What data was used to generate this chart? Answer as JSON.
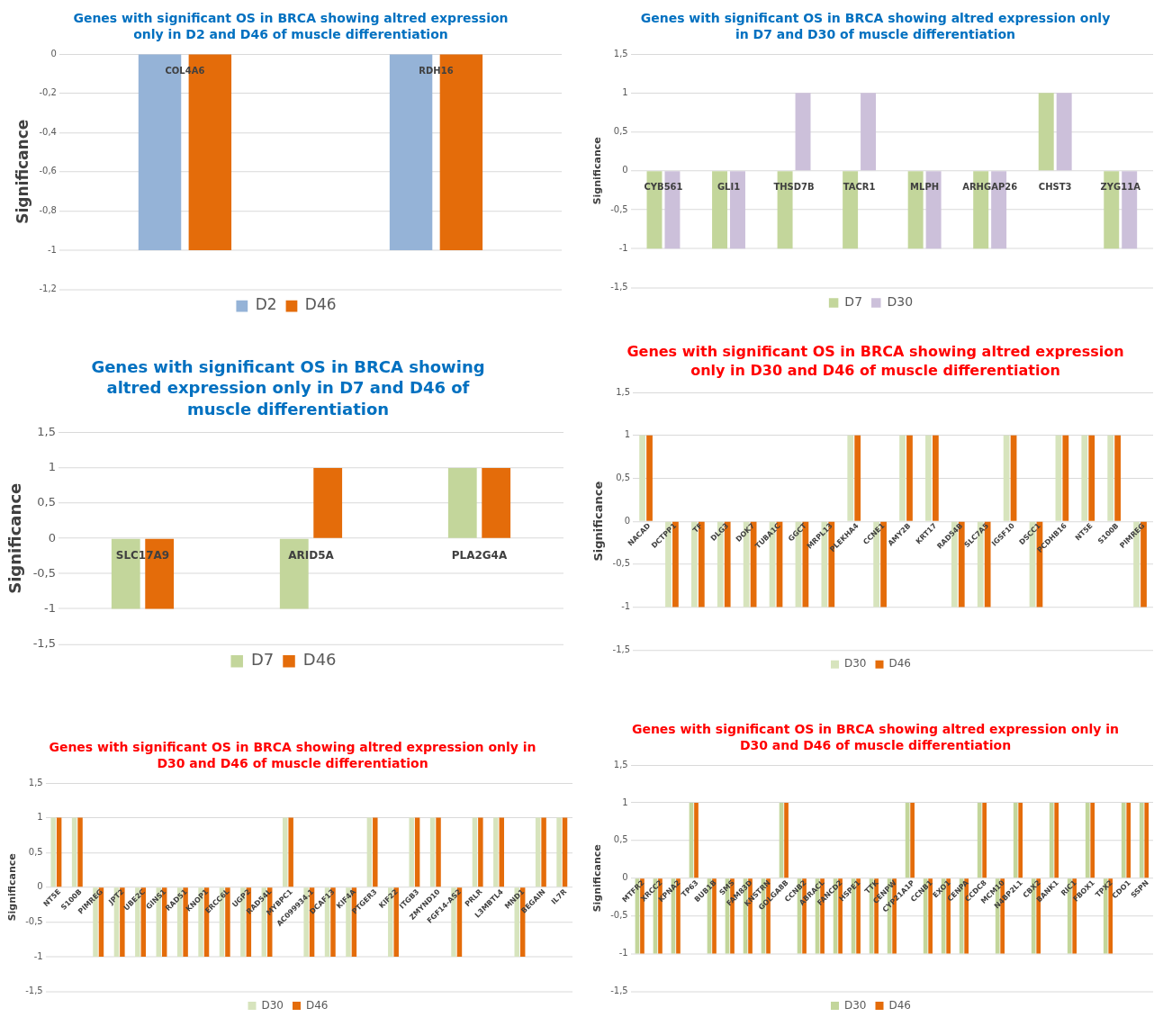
{
  "chart_data": [
    {
      "type": "bar",
      "title": "Genes with significant OS in BRCA showing altred expression only in D2 and D46  of muscle differentiation",
      "ylabel": "Significance",
      "categories": [
        "COL4A6",
        "RDH16"
      ],
      "series": [
        {
          "name": "D2",
          "color": "#95b3d7",
          "values": [
            -1,
            -1
          ]
        },
        {
          "name": "D46",
          "color": "#e46c0a",
          "values": [
            -1,
            -1
          ]
        }
      ],
      "ylim": [
        -1.2,
        0
      ],
      "yticks": [
        0,
        {
          "value": -0.2,
          "label": "-0,2"
        },
        {
          "value": -0.4,
          "label": "-0,4"
        },
        {
          "value": -0.6,
          "label": "-0,6"
        },
        {
          "value": -0.8,
          "label": "-0,8"
        },
        -1,
        {
          "value": -1.2,
          "label": "-1,2"
        }
      ],
      "grid": "y",
      "legend": "bottom"
    },
    {
      "type": "bar",
      "title": "Genes with significant OS in BRCA showing altred expression only in D7 and D30  of muscle differentiation",
      "ylabel": "Significance",
      "categories": [
        "CYB561",
        "GLI1",
        "THSD7B",
        "TACR1",
        "MLPH",
        "ARHGAP26",
        "CHST3",
        "ZYG11A"
      ],
      "series": [
        {
          "name": "D7",
          "color": "#c3d69b",
          "values": [
            -1,
            -1,
            -1,
            -1,
            -1,
            -1,
            1,
            -1
          ]
        },
        {
          "name": "D30",
          "color": "#ccc0da",
          "values": [
            -1,
            -1,
            1,
            1,
            -1,
            -1,
            1,
            -1
          ]
        }
      ],
      "ylim": [
        -1.5,
        1.5
      ],
      "yticks": [
        {
          "value": 1.5,
          "label": "1,5"
        },
        1,
        {
          "value": 0.5,
          "label": "0,5"
        },
        0,
        {
          "value": -0.5,
          "label": "-0,5"
        },
        -1,
        {
          "value": -1.5,
          "label": "-1,5"
        }
      ],
      "grid": "y",
      "legend": "bottom"
    },
    {
      "type": "bar",
      "title": "Genes with significant OS in BRCA showing altred expression only in D7 and D46  of muscle differentiation",
      "ylabel": "Significance",
      "categories": [
        "SLC17A9",
        "ARID5A",
        "PLA2G4A"
      ],
      "series": [
        {
          "name": "D7",
          "color": "#c3d69b",
          "values": [
            -1,
            -1,
            1
          ]
        },
        {
          "name": "D46",
          "color": "#e46c0a",
          "values": [
            -1,
            1,
            1
          ]
        }
      ],
      "ylim": [
        -1.5,
        1.5
      ],
      "yticks": [
        {
          "value": 1.5,
          "label": "1,5"
        },
        1,
        {
          "value": 0.5,
          "label": "0,5"
        },
        0,
        {
          "value": -0.5,
          "label": "-0,5"
        },
        -1,
        {
          "value": -1.5,
          "label": "-1,5"
        }
      ],
      "grid": "y",
      "legend": "bottom"
    },
    {
      "type": "bar",
      "title": "Genes with significant OS in BRCA showing altred expression only in D30 and D46  of muscle differentiation",
      "ylabel": "Significance",
      "categories": [
        "NACAD",
        "DCTPP1",
        "TF",
        "DLG3",
        "DOK7",
        "TUBA1C",
        "GGCT",
        "MRPL13",
        "PLEKHA4",
        "CCNE1",
        "AMY2B",
        "KRT17",
        "RAD54B",
        "SLC7A5",
        "IGSF10",
        "DSCC1",
        "PCDHB16",
        "NT5E",
        "S100B",
        "PIMREG"
      ],
      "series": [
        {
          "name": "D30",
          "color": "#d7e4bd",
          "values": [
            1,
            -1,
            -1,
            -1,
            -1,
            -1,
            -1,
            -1,
            1,
            -1,
            1,
            1,
            -1,
            -1,
            1,
            -1,
            1,
            1,
            1,
            -1
          ]
        },
        {
          "name": "D46",
          "color": "#e46c0a",
          "values": [
            1,
            -1,
            -1,
            -1,
            -1,
            -1,
            -1,
            -1,
            1,
            -1,
            1,
            1,
            -1,
            -1,
            1,
            -1,
            1,
            1,
            1,
            -1
          ]
        }
      ],
      "ylim": [
        -1.5,
        1.5
      ],
      "yticks": [
        {
          "value": 1.5,
          "label": "1,5"
        },
        1,
        {
          "value": 0.5,
          "label": "0,5"
        },
        0,
        {
          "value": -0.5,
          "label": "-0,5"
        },
        -1,
        {
          "value": -1.5,
          "label": "-1,5"
        }
      ],
      "grid": "y",
      "legend": "bottom"
    },
    {
      "type": "bar",
      "title": "Genes with significant OS in BRCA showing altred expression only in D30 and D46  of muscle differentiation",
      "ylabel": "Significance",
      "categories": [
        "NT5E",
        "S100B",
        "PIMREG",
        "JPT2",
        "UBE2C",
        "GINS1",
        "RAD51",
        "KNOP1",
        "ERCC6L",
        "UGP2",
        "RAD54L",
        "MYBPC1",
        "AC099934.1",
        "DCAF13",
        "KIF4A",
        "PTGER3",
        "KIF22",
        "ITGB3",
        "ZMYND10",
        "FGF14-AS2",
        "PRLR",
        "L3MBTL4",
        "MND1",
        "BEGAIN",
        "IL7R"
      ],
      "series": [
        {
          "name": "D30",
          "color": "#d7e4bd",
          "values": [
            1,
            1,
            -1,
            -1,
            -1,
            -1,
            -1,
            -1,
            -1,
            -1,
            -1,
            1,
            -1,
            -1,
            -1,
            1,
            -1,
            1,
            1,
            -1,
            1,
            1,
            -1,
            1,
            1
          ]
        },
        {
          "name": "D46",
          "color": "#e46c0a",
          "values": [
            1,
            1,
            -1,
            -1,
            -1,
            -1,
            -1,
            -1,
            -1,
            -1,
            -1,
            1,
            -1,
            -1,
            -1,
            1,
            -1,
            1,
            1,
            -1,
            1,
            1,
            -1,
            1,
            1
          ]
        }
      ],
      "ylim": [
        -1.5,
        1.5
      ],
      "yticks": [
        {
          "value": 1.5,
          "label": "1,5"
        },
        1,
        {
          "value": 0.5,
          "label": "0,5"
        },
        0,
        {
          "value": -0.5,
          "label": "-0,5"
        },
        -1,
        {
          "value": -1.5,
          "label": "-1,5"
        }
      ],
      "grid": "y",
      "legend": "bottom"
    },
    {
      "type": "bar",
      "title": "Genes with significant OS in BRCA showing altred expression only in D30 and D46  of muscle differentiation",
      "ylabel": "Significance",
      "categories": [
        "MTFR2",
        "XRCC2",
        "KPNA2",
        "TP63",
        "BUB1B",
        "SMS",
        "FAM83D",
        "KNSTRN",
        "GOLGA8B",
        "CCNB2",
        "ABRACL",
        "FANCD2",
        "HSPE1",
        "TTK",
        "CENPW",
        "CYP21A1P",
        "CCNB1",
        "EXO1",
        "CENPA",
        "CCDC8",
        "MCM10",
        "N4BP2L1",
        "CBX2",
        "BANK1",
        "RIC1",
        "FBOX1",
        "TPX2",
        "CDO1",
        "SSPN"
      ],
      "series": [
        {
          "name": "D30",
          "color": "#c3d69b",
          "values": [
            -1,
            -1,
            -1,
            1,
            -1,
            -1,
            -1,
            -1,
            1,
            -1,
            -1,
            -1,
            -1,
            -1,
            -1,
            1,
            -1,
            -1,
            -1,
            1,
            -1,
            1,
            -1,
            1,
            -1,
            1,
            -1,
            1,
            1
          ]
        },
        {
          "name": "D46",
          "color": "#e46c0a",
          "values": [
            -1,
            -1,
            -1,
            1,
            -1,
            -1,
            -1,
            -1,
            1,
            -1,
            -1,
            -1,
            -1,
            -1,
            -1,
            1,
            -1,
            -1,
            -1,
            1,
            -1,
            1,
            -1,
            1,
            -1,
            1,
            -1,
            1,
            1
          ]
        }
      ],
      "ylim": [
        -1.5,
        1.5
      ],
      "yticks": [
        {
          "value": 1.5,
          "label": "1,5"
        },
        1,
        {
          "value": 0.5,
          "label": "0,5"
        },
        0,
        {
          "value": -0.5,
          "label": "-0,5"
        },
        -1,
        {
          "value": -1.5,
          "label": "-1,5"
        }
      ],
      "grid": "y",
      "legend": "bottom"
    }
  ]
}
